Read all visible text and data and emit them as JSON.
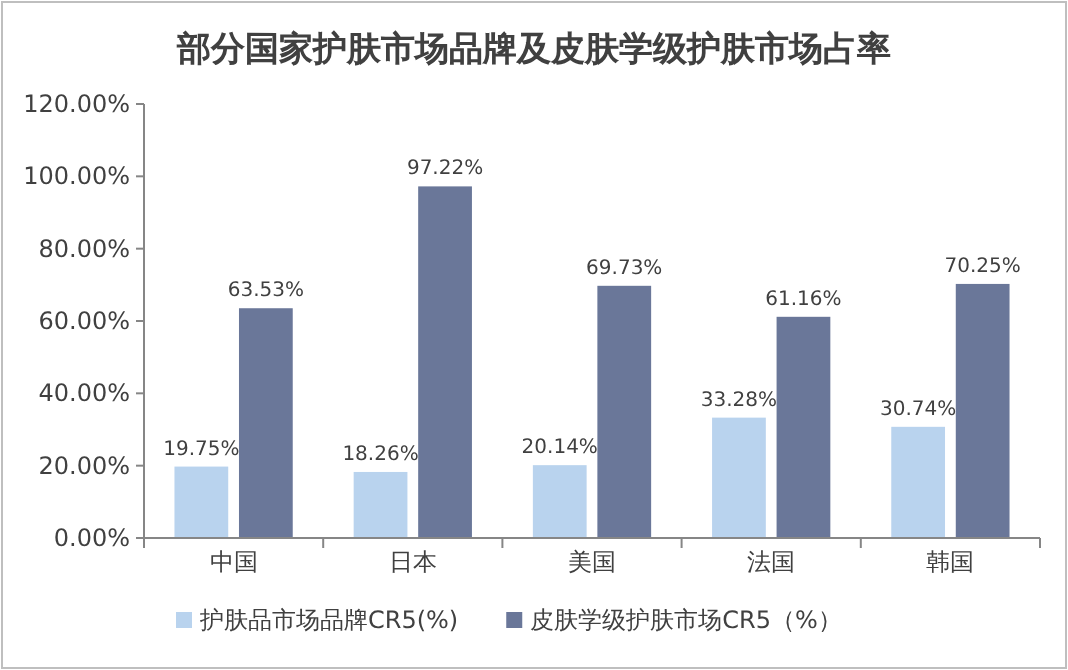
{
  "chart_data": {
    "type": "bar",
    "title": "部分国家护肤市场品牌及皮肤学级护肤市场占率",
    "categories": [
      "中国",
      "日本",
      "美国",
      "法国",
      "韩国"
    ],
    "series": [
      {
        "name": "护肤品市场品牌CR5(%)",
        "color": "#b9d3ee",
        "values": [
          19.75,
          18.26,
          20.14,
          33.28,
          30.74
        ],
        "value_labels": [
          "19.75%",
          "18.26%",
          "20.14%",
          "33.28%",
          "30.74%"
        ]
      },
      {
        "name": "皮肤学级护肤市场CR5（%）",
        "color": "#6a7799",
        "values": [
          63.53,
          97.22,
          69.73,
          61.16,
          70.25
        ],
        "value_labels": [
          "63.53%",
          "97.22%",
          "69.73%",
          "61.16%",
          "70.25%"
        ]
      }
    ],
    "ylim": [
      0,
      120
    ],
    "yticks": [
      {
        "value": 0,
        "label": "0.00%"
      },
      {
        "value": 20,
        "label": "20.00%"
      },
      {
        "value": 40,
        "label": "40.00%"
      },
      {
        "value": 60,
        "label": "60.00%"
      },
      {
        "value": 80,
        "label": "80.00%"
      },
      {
        "value": 100,
        "label": "100.00%"
      },
      {
        "value": 120,
        "label": "120.00%"
      }
    ],
    "legend": "bottom"
  }
}
